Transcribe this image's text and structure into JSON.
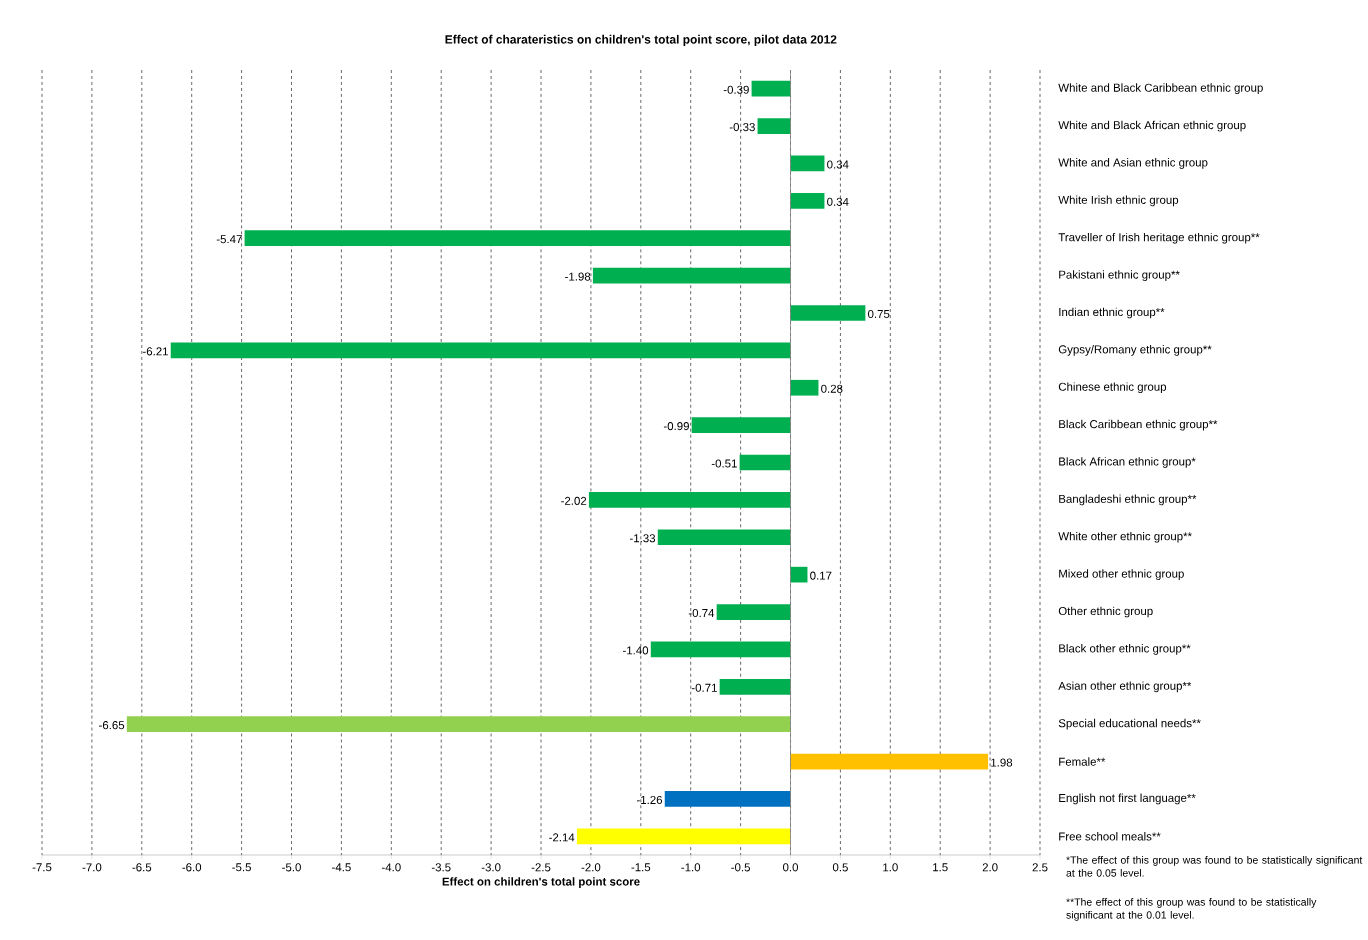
{
  "chart_data": {
    "type": "bar",
    "orientation": "horizontal",
    "title": "Effect of charateristics on children's total point score, pilot data 2012",
    "xlabel": "Effect on children's total point score",
    "categories": [
      "White and Black Caribbean ethnic group",
      "White and Black African ethnic group",
      "White and Asian ethnic group",
      "White Irish ethnic group",
      "Traveller of Irish heritage ethnic group**",
      "Pakistani ethnic group**",
      "Indian ethnic group**",
      "Gypsy/Romany ethnic group**",
      "Chinese ethnic group",
      "Black Caribbean ethnic group**",
      "Black African ethnic group*",
      "Bangladeshi ethnic group**",
      "White other ethnic group**",
      "Mixed other ethnic group",
      "Other ethnic group",
      "Black other ethnic group**",
      "Asian other ethnic group**",
      "Special educational needs**",
      "Female**",
      "English not first language**",
      "Free school meals**"
    ],
    "values": [
      -0.39,
      -0.33,
      0.34,
      0.34,
      -5.47,
      -1.98,
      0.75,
      -6.21,
      0.28,
      -0.99,
      -0.51,
      -2.02,
      -1.33,
      0.17,
      -0.74,
      -1.4,
      -0.71,
      -6.65,
      1.98,
      -1.26,
      -2.14
    ],
    "value_labels": [
      "-0.39",
      "-0.33",
      "0.34",
      "0.34",
      "-5.47",
      "-1.98",
      "0.75",
      "-6.21",
      "0.28",
      "-0.99",
      "-0.51",
      "-2.02",
      "-1.33",
      "0.17",
      "-0.74",
      "-1.40",
      "-0.71",
      "-6.65",
      "1.98",
      "-1.26",
      "-2.14"
    ],
    "colors": [
      "#00b050",
      "#00b050",
      "#00b050",
      "#00b050",
      "#00b050",
      "#00b050",
      "#00b050",
      "#00b050",
      "#00b050",
      "#00b050",
      "#00b050",
      "#00b050",
      "#00b050",
      "#00b050",
      "#00b050",
      "#00b050",
      "#00b050",
      "#92d050",
      "#ffc000",
      "#0070c0",
      "#ffff00"
    ],
    "xlim": [
      -7.5,
      2.5
    ],
    "xticks": [
      {
        "value": -7.5,
        "label": "-7.5"
      },
      {
        "value": -7,
        "label": "-7.0"
      },
      {
        "value": -6.5,
        "label": "-6.5"
      },
      {
        "value": -6,
        "label": "-6.0"
      },
      {
        "value": -5.5,
        "label": "-5.5"
      },
      {
        "value": -5,
        "label": "-5.0"
      },
      {
        "value": -4.5,
        "label": "-4.5"
      },
      {
        "value": -4,
        "label": "-4.0"
      },
      {
        "value": -3.5,
        "label": "-3.5"
      },
      {
        "value": -3,
        "label": "-3.0"
      },
      {
        "value": -2.5,
        "label": "-2.5"
      },
      {
        "value": -2,
        "label": "-2.0"
      },
      {
        "value": -1.5,
        "label": "-1.5"
      },
      {
        "value": -1,
        "label": "-1.0"
      },
      {
        "value": -0.5,
        "label": "-0.5"
      },
      {
        "value": 0,
        "label": "0.0"
      },
      {
        "value": 0.5,
        "label": "0.5"
      },
      {
        "value": 1,
        "label": "1.0"
      },
      {
        "value": 1.5,
        "label": "1.5"
      },
      {
        "value": 2,
        "label": "2.0"
      },
      {
        "value": 2.5,
        "label": "2.5"
      }
    ],
    "grid": "x",
    "annotations": [
      "*The effect of this group was found to be statistically significant at the 0.05 level.",
      "**The effect of this group was found to be statistically significant at the 0.01 level."
    ]
  }
}
